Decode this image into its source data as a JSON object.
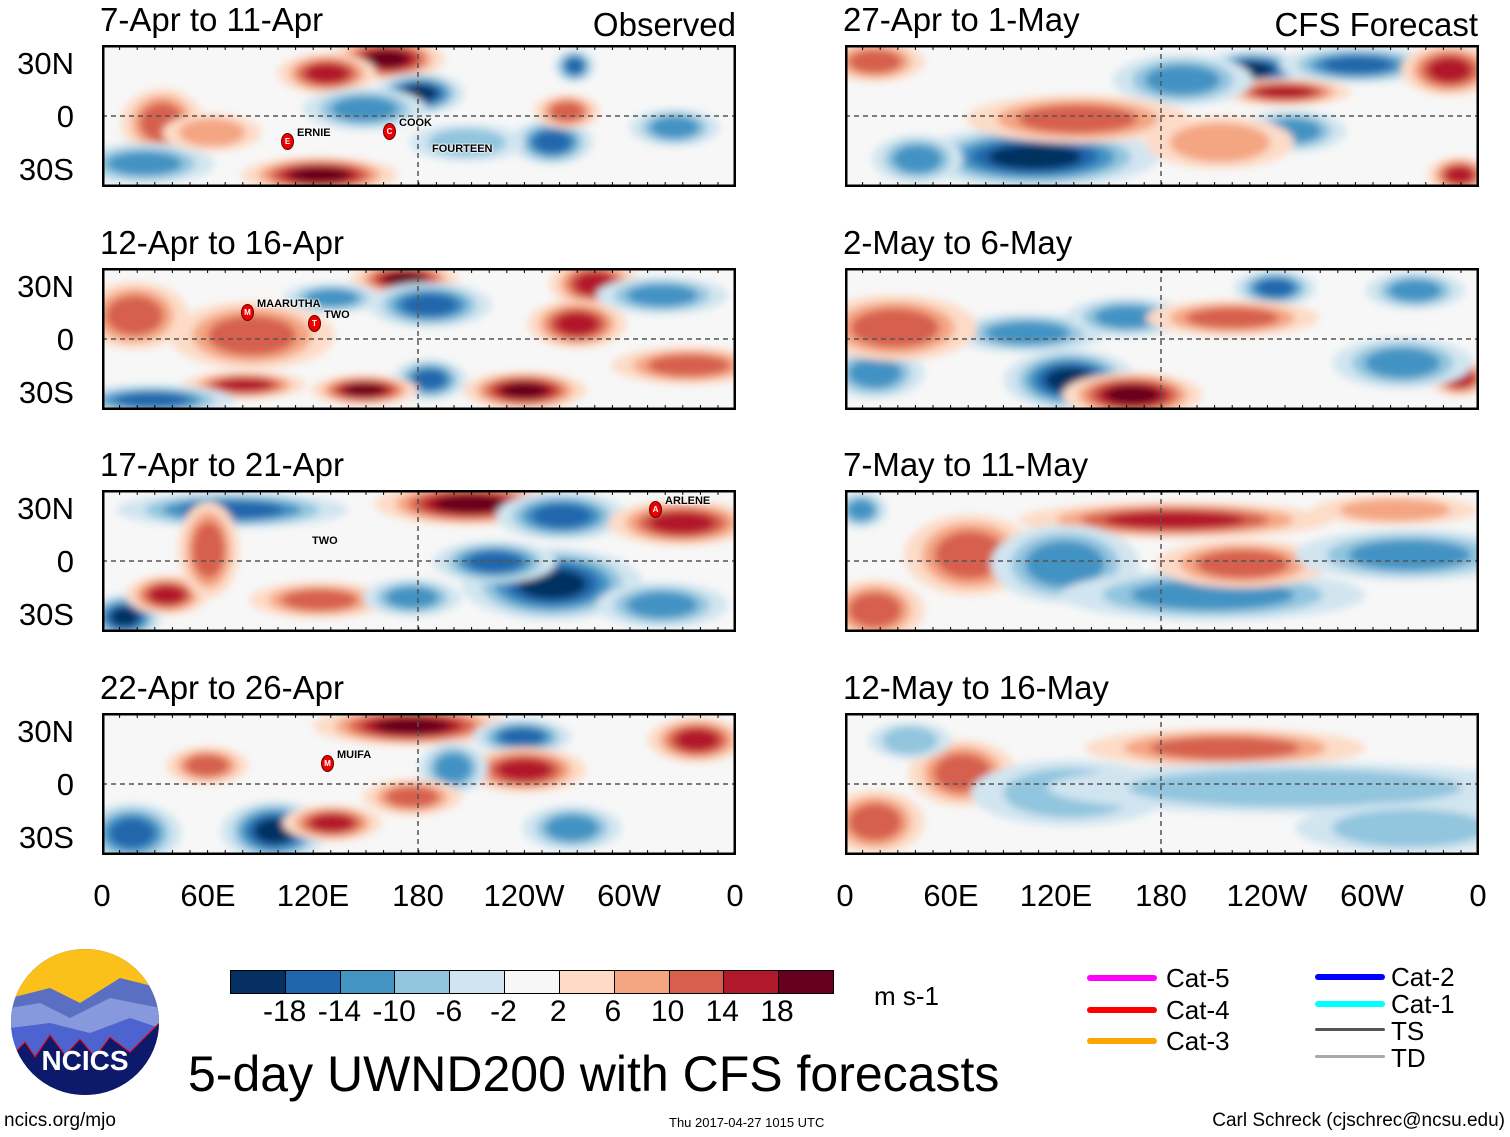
{
  "header": {
    "left_tag": "Observed",
    "right_tag": "CFS Forecast"
  },
  "panels": [
    {
      "title": "7-Apr to 11-Apr",
      "storms": [
        {
          "name": "ERNIE",
          "letter": "E"
        },
        {
          "name": "COOK",
          "letter": "C"
        },
        {
          "name": "FOURTEEN",
          "letter": ""
        }
      ]
    },
    {
      "title": "12-Apr to 16-Apr",
      "storms": [
        {
          "name": "MAARUTHA",
          "letter": "M"
        },
        {
          "name": "TWO",
          "letter": "T"
        }
      ]
    },
    {
      "title": "17-Apr to 21-Apr",
      "storms": [
        {
          "name": "TWO",
          "letter": ""
        },
        {
          "name": "ARLENE",
          "letter": "A"
        }
      ]
    },
    {
      "title": "22-Apr to 26-Apr",
      "storms": [
        {
          "name": "MUIFA",
          "letter": "M"
        }
      ]
    },
    {
      "title": "27-Apr to 1-May",
      "storms": []
    },
    {
      "title": "2-May to 6-May",
      "storms": []
    },
    {
      "title": "7-May to 11-May",
      "storms": []
    },
    {
      "title": "12-May to 16-May",
      "storms": []
    }
  ],
  "lat_labels": [
    "30N",
    "0",
    "30S"
  ],
  "lon_labels": [
    "0",
    "60E",
    "120E",
    "180",
    "120W",
    "60W",
    "0"
  ],
  "colorbar": {
    "colors": [
      "#053061",
      "#2166ac",
      "#4393c3",
      "#92c5de",
      "#d1e5f0",
      "#f7f7f7",
      "#fddbc7",
      "#f4a582",
      "#d6604d",
      "#b2182b",
      "#67001f"
    ],
    "labels": [
      "-18",
      "-14",
      "-10",
      "-6",
      "-2",
      "2",
      "6",
      "10",
      "14",
      "18"
    ],
    "units": "m s-1"
  },
  "legend": [
    {
      "label": "Cat-5",
      "color": "#ff00ff"
    },
    {
      "label": "Cat-4",
      "color": "#ff0000"
    },
    {
      "label": "Cat-3",
      "color": "#ffa500"
    },
    {
      "label": "Cat-2",
      "color": "#0000ff"
    },
    {
      "label": "Cat-1",
      "color": "#00ffff"
    },
    {
      "label": "TS",
      "color": "#555555"
    },
    {
      "label": "TD",
      "color": "#aaaaaa"
    }
  ],
  "logo": {
    "text": "NCICS"
  },
  "title": "5-day UWND200 with CFS forecasts",
  "footer": {
    "left": "ncics.org/mjo",
    "center": "Thu 2017-04-27 1015 UTC",
    "right": "Carl Schreck (cjschrec@ncsu.edu)"
  }
}
